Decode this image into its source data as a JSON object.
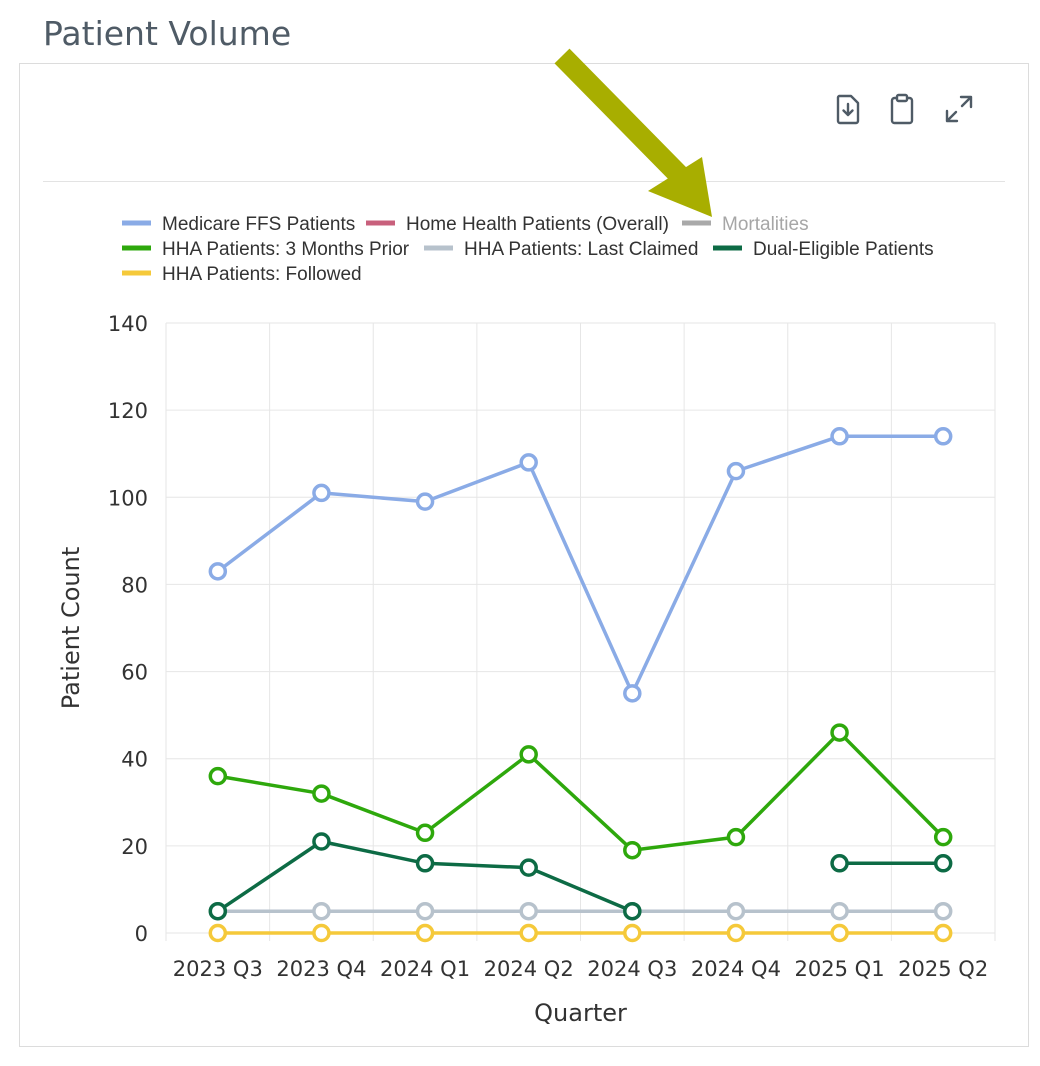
{
  "page_title": "Patient Volume",
  "toolbar": {
    "download_icon": "file-download-icon",
    "clipboard_icon": "clipboard-icon",
    "expand_icon": "expand-icon"
  },
  "chart_data": {
    "type": "line",
    "title": "",
    "xlabel": "Quarter",
    "ylabel": "Patient Count",
    "ylim": [
      0,
      140
    ],
    "yticks": [
      0,
      20,
      40,
      60,
      80,
      100,
      120,
      140
    ],
    "categories": [
      "2023 Q3",
      "2023 Q4",
      "2024 Q1",
      "2024 Q2",
      "2024 Q3",
      "2024 Q4",
      "2025 Q1",
      "2025 Q2"
    ],
    "legend_position": "top",
    "series": [
      {
        "name": "Medicare FFS Patients",
        "color": "#8aabe6",
        "values": [
          83,
          101,
          99,
          108,
          55,
          106,
          114,
          114
        ]
      },
      {
        "name": "Home Health Patients (Overall)",
        "color": "#c8607c",
        "values": [
          null,
          null,
          null,
          null,
          null,
          null,
          null,
          null
        ]
      },
      {
        "name": "Mortalities",
        "color": "#a9a9a9",
        "hidden": true,
        "values": [
          null,
          null,
          null,
          null,
          null,
          null,
          null,
          null
        ]
      },
      {
        "name": "HHA Patients: 3 Months Prior",
        "color": "#2ea80c",
        "values": [
          36,
          32,
          23,
          41,
          19,
          22,
          46,
          22
        ]
      },
      {
        "name": "HHA Patients: Last Claimed",
        "color": "#b7c2cc",
        "values": [
          5,
          5,
          5,
          5,
          5,
          5,
          5,
          5
        ]
      },
      {
        "name": "Dual-Eligible Patients",
        "color": "#0d6b45",
        "values": [
          5,
          21,
          16,
          15,
          5,
          null,
          16,
          16
        ]
      },
      {
        "name": "HHA Patients: Followed",
        "color": "#f5c93a",
        "values": [
          0,
          0,
          0,
          0,
          0,
          0,
          0,
          0
        ]
      }
    ]
  },
  "annotation": {
    "type": "arrow",
    "color": "#a8ae00",
    "points_to": "Mortalities"
  }
}
